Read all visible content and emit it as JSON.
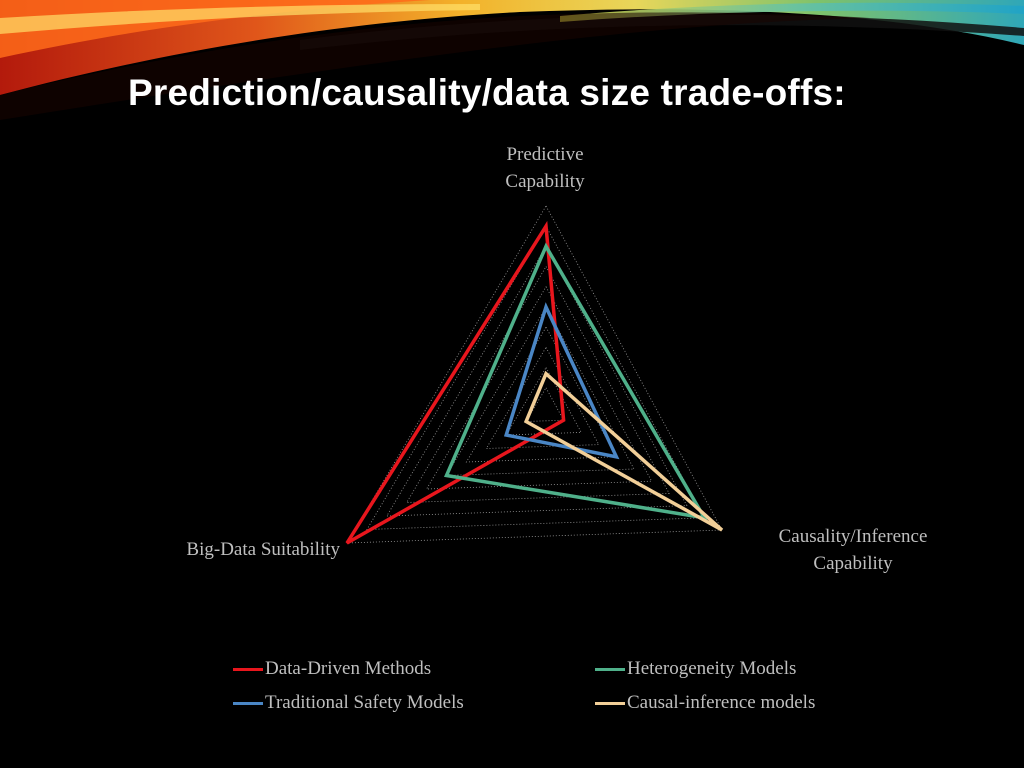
{
  "slide": {
    "title": "Prediction/causality/data size trade-offs:"
  },
  "chart_data": {
    "type": "radar",
    "axes": [
      [
        "Predictive",
        "Capability"
      ],
      [
        "Causality/Inference",
        "Capability"
      ],
      [
        "Big-Data Suitability"
      ]
    ],
    "rmax": 10,
    "gridlines": 10,
    "grid_style": "dotted",
    "series": [
      {
        "name": "Data-Driven Methods",
        "color": "#e8161d",
        "values": [
          9,
          1,
          10
        ]
      },
      {
        "name": "Heterogeneity Models",
        "color": "#4fb08a",
        "values": [
          8,
          9,
          5
        ]
      },
      {
        "name": "Traditional Safety Models",
        "color": "#4a86c5",
        "values": [
          5,
          4,
          2
        ]
      },
      {
        "name": "Causal-inference models",
        "color": "#f2cf98",
        "values": [
          1.7,
          10,
          1
        ]
      }
    ],
    "legend_position": "bottom"
  }
}
